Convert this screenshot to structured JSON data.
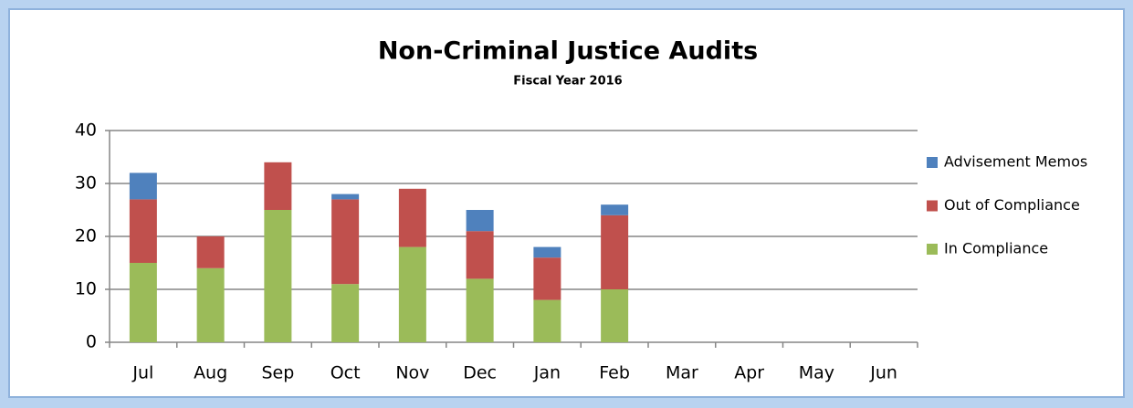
{
  "chart_data": {
    "type": "stacked_bar",
    "title": "Non-Criminal Justice Audits",
    "subtitle": "Fiscal Year 2016",
    "categories": [
      "Jul",
      "Aug",
      "Sep",
      "Oct",
      "Nov",
      "Dec",
      "Jan",
      "Feb",
      "Mar",
      "Apr",
      "May",
      "Jun"
    ],
    "series": [
      {
        "name": "In Compliance",
        "color": "#9bbb59",
        "values": [
          15,
          14,
          25,
          11,
          18,
          12,
          8,
          10,
          null,
          null,
          null,
          null
        ]
      },
      {
        "name": "Out of Compliance",
        "color": "#c0504d",
        "values": [
          12,
          6,
          9,
          16,
          11,
          9,
          8,
          14,
          null,
          null,
          null,
          null
        ]
      },
      {
        "name": "Advisement Memos",
        "color": "#4f81bd",
        "values": [
          5,
          0,
          0,
          1,
          0,
          4,
          2,
          2,
          null,
          null,
          null,
          null
        ]
      }
    ],
    "ylim": [
      0,
      40
    ],
    "yticks": [
      0,
      10,
      20,
      30,
      40
    ],
    "grid": true,
    "legend": "right"
  }
}
